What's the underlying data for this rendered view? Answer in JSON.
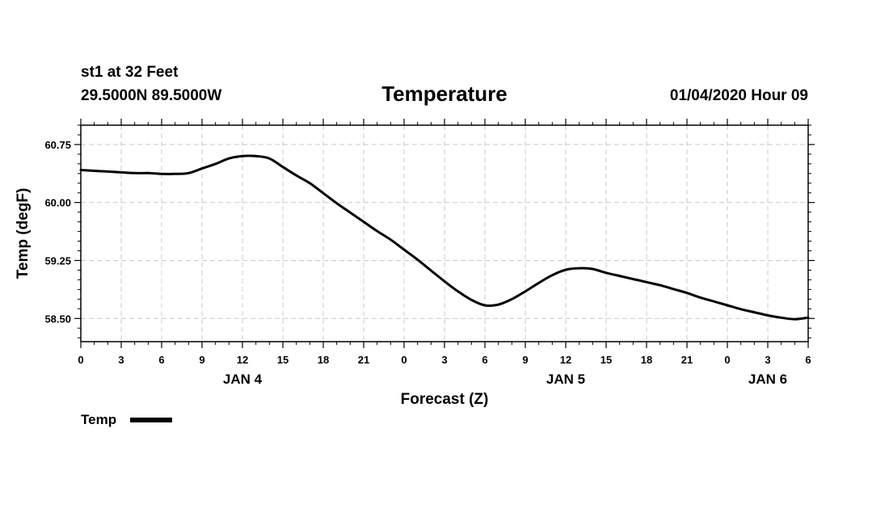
{
  "header": {
    "station": "st1 at 32 Feet",
    "location": "29.5000N 89.5000W",
    "title": "Temperature",
    "datetime": "01/04/2020 Hour 09"
  },
  "legend": {
    "label": "Temp",
    "color": "#000000"
  },
  "chart_data": {
    "type": "line",
    "title": "Temperature",
    "xlabel": "Forecast (Z)",
    "ylabel": "Temp (degF)",
    "ylim": [
      58.2,
      61.0
    ],
    "xlim": [
      0,
      54
    ],
    "grid": true,
    "legend_position": "bottom-left",
    "x_tick_values": [
      0,
      3,
      6,
      9,
      12,
      15,
      18,
      21,
      24,
      27,
      30,
      33,
      36,
      39,
      42,
      45,
      48,
      51,
      54
    ],
    "x_tick_labels": [
      "0",
      "3",
      "6",
      "9",
      "12",
      "15",
      "18",
      "21",
      "0",
      "3",
      "6",
      "9",
      "12",
      "15",
      "18",
      "21",
      "0",
      "3",
      "6"
    ],
    "y_tick_values": [
      58.5,
      59.25,
      60.0,
      60.75
    ],
    "y_tick_labels": [
      "58.50",
      "59.25",
      "60.00",
      "60.75"
    ],
    "date_labels": [
      {
        "x": 12,
        "label": "JAN 4"
      },
      {
        "x": 36,
        "label": "JAN 5"
      },
      {
        "x": 51,
        "label": "JAN 6"
      }
    ],
    "series": [
      {
        "name": "Temp",
        "color": "#000000",
        "x": [
          0,
          1,
          2,
          3,
          4,
          5,
          6,
          7,
          8,
          9,
          10,
          11,
          12,
          13,
          14,
          15,
          16,
          17,
          18,
          19,
          20,
          21,
          22,
          23,
          24,
          25,
          26,
          27,
          28,
          29,
          30,
          31,
          32,
          33,
          34,
          35,
          36,
          37,
          38,
          39,
          40,
          41,
          42,
          43,
          44,
          45,
          46,
          47,
          48,
          49,
          50,
          51,
          52,
          53,
          54
        ],
        "values": [
          60.42,
          60.41,
          60.4,
          60.39,
          60.38,
          60.38,
          60.37,
          60.37,
          60.38,
          60.44,
          60.5,
          60.57,
          60.6,
          60.6,
          60.57,
          60.46,
          60.35,
          60.25,
          60.12,
          59.99,
          59.87,
          59.75,
          59.63,
          59.52,
          59.39,
          59.26,
          59.12,
          58.98,
          58.85,
          58.74,
          58.67,
          58.68,
          58.75,
          58.85,
          58.96,
          59.06,
          59.13,
          59.15,
          59.14,
          59.09,
          59.05,
          59.01,
          58.97,
          58.93,
          58.88,
          58.83,
          58.77,
          58.72,
          58.67,
          58.62,
          58.58,
          58.54,
          58.51,
          58.49,
          58.51
        ]
      }
    ]
  }
}
